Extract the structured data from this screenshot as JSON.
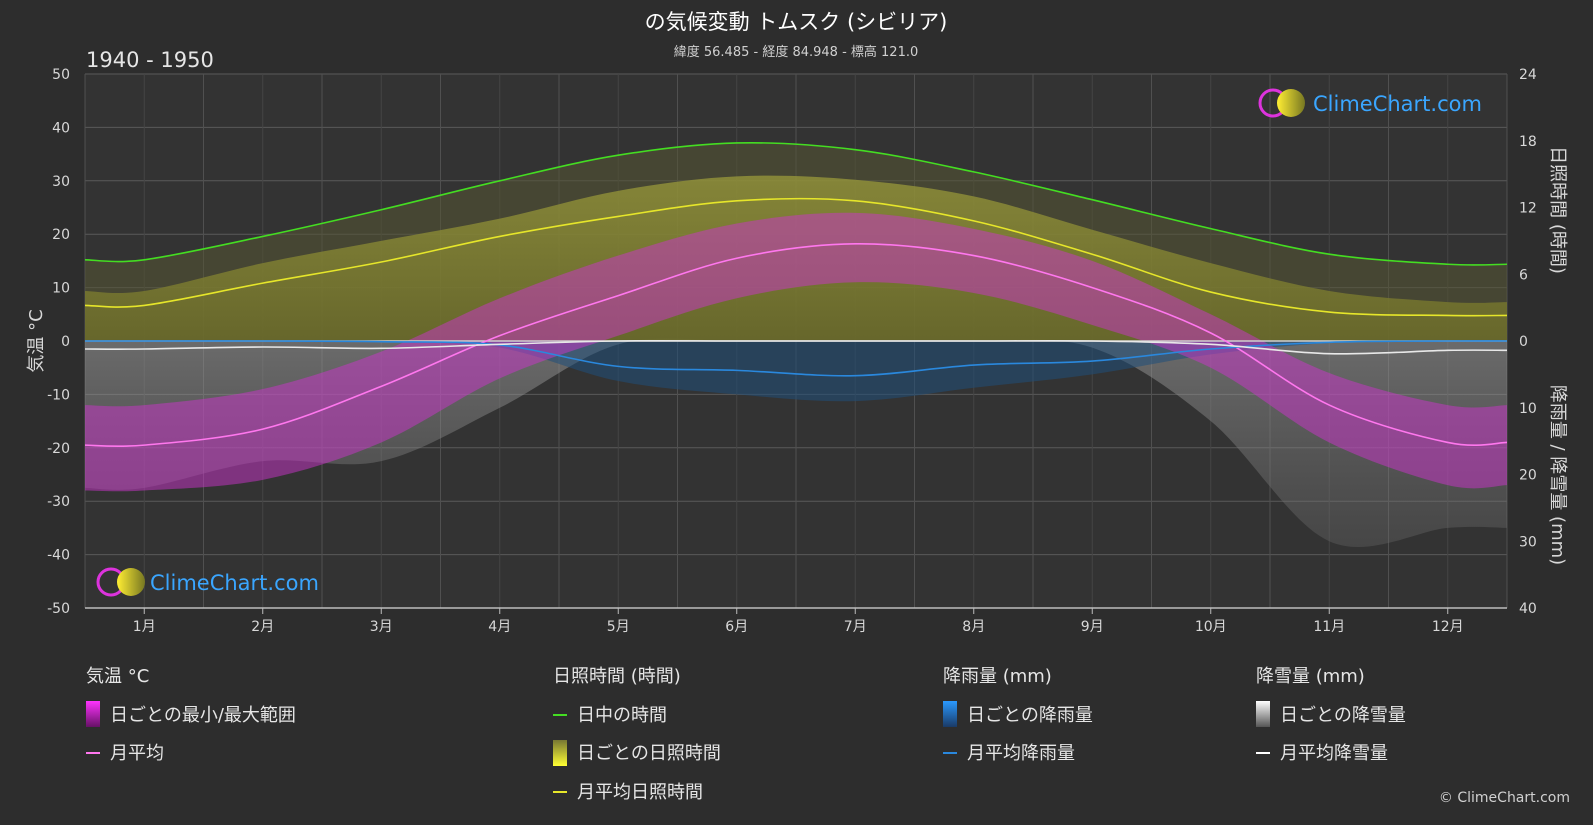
{
  "title": "の気候変動 トムスク (シビリア)",
  "subtitle": "緯度 56.485 - 経度 84.948 - 標高 121.0",
  "period": "1940 - 1950",
  "brand": "ClimeChart.com",
  "copyright": "© ClimeChart.com",
  "colors": {
    "background": "#2d2d2d",
    "daylight": "#44dd22",
    "sunshine_avg": "#e6e62a",
    "temp_avg": "#ff77ee",
    "temp_range": "#cc22cc",
    "rain": "#2a88dd",
    "snow": "#dddddd",
    "brand": "#3aa6ff"
  },
  "chart_data": {
    "type": "line",
    "categories": [
      "1月",
      "2月",
      "3月",
      "4月",
      "5月",
      "6月",
      "7月",
      "8月",
      "9月",
      "10月",
      "11月",
      "12月"
    ],
    "axes": {
      "left": {
        "label": "気温 °C",
        "range": [
          -50,
          50
        ],
        "ticks": [
          50,
          40,
          30,
          20,
          10,
          0,
          -10,
          -20,
          -30,
          -40,
          -50
        ]
      },
      "right_top": {
        "label": "日照時間 (時間)",
        "range": [
          0,
          24
        ],
        "ticks": [
          24,
          18,
          12,
          6,
          0
        ]
      },
      "right_bottom": {
        "label": "降雨量 / 降雪量 (mm)",
        "range": [
          0,
          40
        ],
        "ticks": [
          10,
          20,
          30,
          40
        ]
      }
    },
    "grid": true,
    "series": [
      {
        "name": "日中の時間",
        "axis": "hours",
        "values": [
          7.3,
          9.4,
          11.8,
          14.4,
          16.7,
          17.8,
          17.2,
          15.2,
          12.7,
          10.1,
          7.8,
          6.9
        ]
      },
      {
        "name": "月平均日照時間",
        "axis": "hours",
        "values": [
          3.2,
          5.2,
          7.1,
          9.4,
          11.2,
          12.6,
          12.6,
          10.8,
          7.8,
          4.4,
          2.6,
          2.3
        ]
      },
      {
        "name": "月平均",
        "axis": "temp",
        "values": [
          -19.5,
          -16.5,
          -8.5,
          1.0,
          8.5,
          15.5,
          18.2,
          16.0,
          10.0,
          1.5,
          -12.0,
          -19.0
        ]
      },
      {
        "name": "月平均降雨量",
        "axis": "precip",
        "values": [
          0.0,
          0.0,
          0.1,
          0.6,
          3.8,
          4.4,
          5.2,
          3.6,
          3.0,
          1.2,
          0.2,
          0.0
        ]
      },
      {
        "name": "月平均降雪量",
        "axis": "precip",
        "values": [
          1.2,
          0.9,
          1.1,
          0.5,
          0.0,
          0.0,
          0.0,
          0.0,
          0.0,
          0.5,
          1.9,
          1.4
        ]
      }
    ],
    "temp_range": {
      "name": "日ごとの最小/最大範囲",
      "min": [
        -28,
        -26,
        -19,
        -7,
        1,
        8,
        11,
        9,
        3,
        -5,
        -19,
        -27
      ],
      "max": [
        -12,
        -9,
        -2,
        8,
        16,
        22,
        24,
        21,
        15,
        5,
        -6,
        -12
      ]
    },
    "daily_sunshine": {
      "name": "日ごとの日照時間",
      "values": [
        4.5,
        7.0,
        9.0,
        11.0,
        13.5,
        14.8,
        14.5,
        13.0,
        10.0,
        7.0,
        4.5,
        3.5
      ]
    },
    "daily_rain": {
      "name": "日ごとの降雨量",
      "values": [
        0.0,
        0.0,
        0.2,
        1.0,
        6.0,
        8.0,
        9.0,
        7.0,
        5.0,
        2.0,
        0.3,
        0.0
      ]
    },
    "daily_snow": {
      "name": "日ごとの降雪量",
      "values": [
        22,
        18,
        18,
        10,
        0.5,
        0,
        0,
        0,
        1,
        12,
        30,
        28
      ]
    }
  },
  "legend": {
    "groups": [
      {
        "heading": "気温 °C",
        "items": [
          "日ごとの最小/最大範囲",
          "月平均"
        ]
      },
      {
        "heading": "日照時間 (時間)",
        "items": [
          "日中の時間",
          "日ごとの日照時間",
          "月平均日照時間"
        ]
      },
      {
        "heading": "降雨量 (mm)",
        "items": [
          "日ごとの降雨量",
          "月平均降雨量"
        ]
      },
      {
        "heading": "降雪量 (mm)",
        "items": [
          "日ごとの降雪量",
          "月平均降雪量"
        ]
      }
    ]
  }
}
